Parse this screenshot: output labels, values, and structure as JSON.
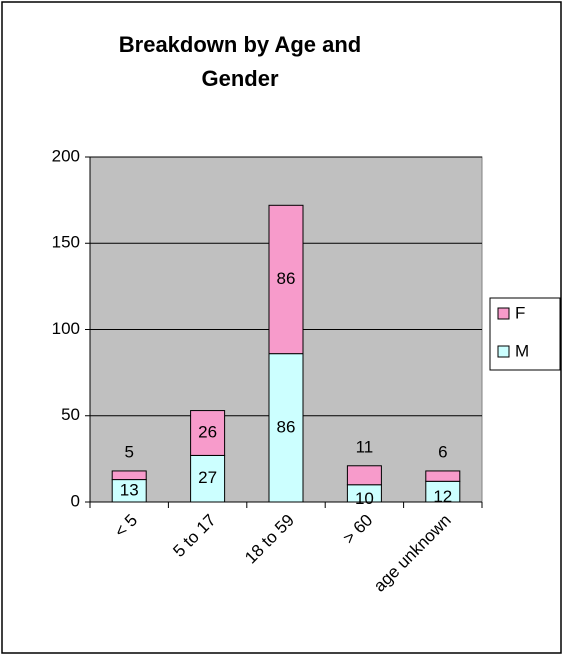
{
  "chart_data": {
    "type": "stacked_bar",
    "title": "Breakdown by Age and Gender",
    "categories": [
      "< 5",
      "5 to 17",
      "18 to 59",
      "> 60",
      "age unknown"
    ],
    "series": [
      {
        "name": "M",
        "color": "#ccffff",
        "values": [
          13,
          27,
          86,
          10,
          12
        ]
      },
      {
        "name": "F",
        "color": "#f79bcb",
        "values": [
          5,
          26,
          86,
          11,
          6
        ]
      }
    ],
    "ylim": [
      0,
      200
    ],
    "yticks": [
      0,
      50,
      100,
      150,
      200
    ],
    "grid": true,
    "legend": "right"
  }
}
